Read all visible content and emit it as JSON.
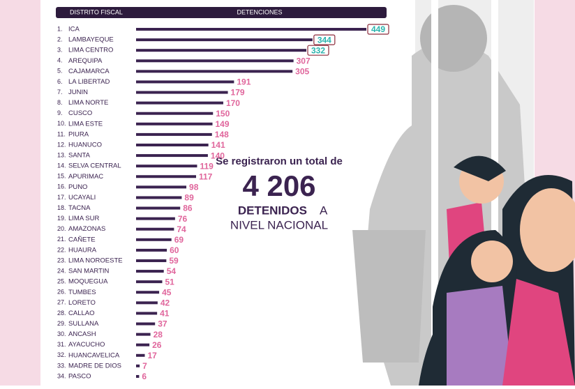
{
  "chart_data": {
    "type": "bar",
    "orientation": "horizontal",
    "header": [
      "DISTRITO FISCAL",
      "DETENCIONES"
    ],
    "ranks": [
      "1.",
      "2.",
      "3.",
      "4.",
      "5.",
      "6.",
      "7.",
      "8.",
      "9.",
      "10.",
      "11.",
      "12.",
      "13.",
      "14.",
      "15.",
      "16.",
      "17.",
      "18.",
      "19.",
      "20.",
      "21.",
      "22.",
      "23.",
      "24.",
      "25.",
      "26.",
      "27.",
      "28.",
      "29.",
      "30.",
      "31.",
      "32.",
      "33.",
      "34."
    ],
    "categories": [
      "ICA",
      "LAMBAYEQUE",
      "LIMA CENTRO",
      "AREQUIPA",
      "CAJAMARCA",
      "LA LIBERTAD",
      "JUNIN",
      "LIMA NORTE",
      "CUSCO",
      "LIMA ESTE",
      "PIURA",
      "HUANUCO",
      "SANTA",
      "SELVA CENTRAL",
      "APURIMAC",
      "PUNO",
      "UCAYALI",
      "TACNA",
      "LIMA SUR",
      "AMAZONAS",
      "CAÑETE",
      "HUAURA",
      "LIMA NOROESTE",
      "SAN MARTIN",
      "MOQUEGUA",
      "TUMBES",
      "LORETO",
      "CALLAO",
      "SULLANA",
      "ANCASH",
      "AYACUCHO",
      "HUANCAVELICA",
      "MADRE DE DIOS",
      "PASCO"
    ],
    "values": [
      449,
      344,
      332,
      307,
      305,
      191,
      179,
      170,
      150,
      149,
      148,
      141,
      140,
      119,
      117,
      98,
      89,
      86,
      76,
      74,
      69,
      60,
      59,
      54,
      51,
      45,
      42,
      41,
      37,
      28,
      26,
      17,
      7,
      6
    ],
    "color": "#3b2350",
    "label_color": "#e0669c",
    "highlight_label_color": "#2bb3ae",
    "highlight_count": 3,
    "annotation": {
      "intro": "Se registraron un total de",
      "total": "4 206",
      "line1": "DETENIDOS",
      "line1b": "A",
      "line2": "NIVEL NACIONAL"
    }
  }
}
